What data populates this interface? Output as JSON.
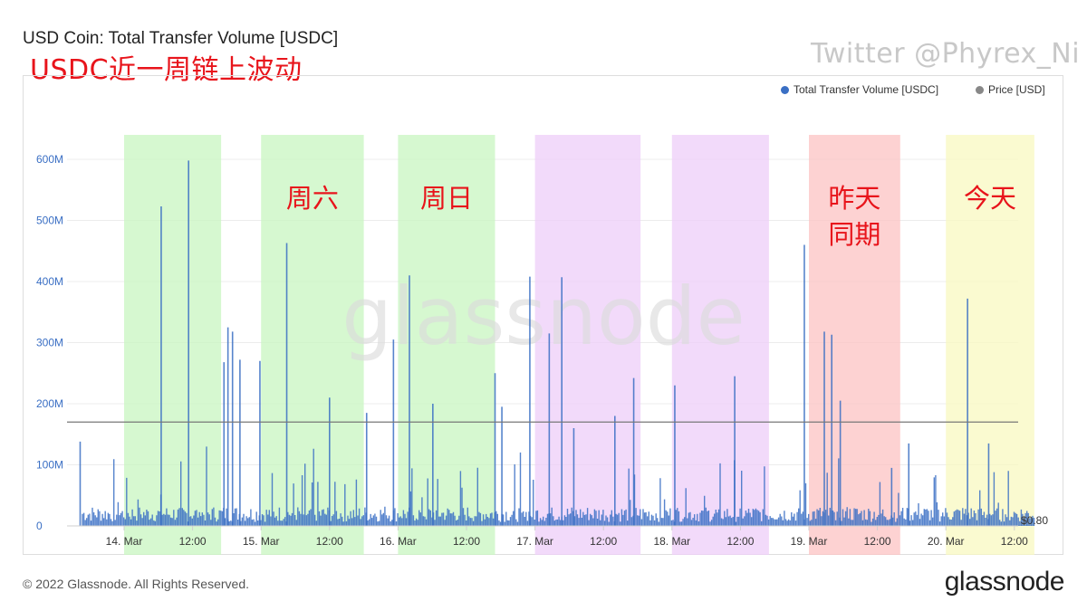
{
  "header": {
    "title": "USD Coin: Total Transfer Volume [USDC]",
    "subtitle": "USDC近一周链上波动",
    "twitter": "Twitter @Phyrex_Ni"
  },
  "legend": {
    "volume_label": "Total Transfer Volume [USDC]",
    "volume_color": "#3a6fc4",
    "price_label": "Price [USD]",
    "price_color": "#888888"
  },
  "watermark": "glassnode",
  "footer": {
    "copyright": "© 2022 Glassnode. All Rights Reserved.",
    "brand": "glassnode"
  },
  "chart_data": {
    "type": "bar",
    "title": "USD Coin: Total Transfer Volume [USDC]",
    "y_ticks": [
      "0",
      "100M",
      "200M",
      "300M",
      "400M",
      "500M",
      "600M"
    ],
    "ylim": [
      0,
      640
    ],
    "y_unit": "M USDC",
    "x_ticks": [
      "14. Mar",
      "12:00",
      "15. Mar",
      "12:00",
      "16. Mar",
      "12:00",
      "17. Mar",
      "12:00",
      "18. Mar",
      "12:00",
      "19. Mar",
      "12:00",
      "20. Mar",
      "12:00"
    ],
    "x_range_hours": [
      -9,
      163
    ],
    "price_last_label": "$0.80",
    "price_level_m": 170,
    "grid": true,
    "legend_position": "top-right",
    "bands": [
      {
        "start_h": 0,
        "end_h": 17,
        "color": "#c8f5c0",
        "label": ""
      },
      {
        "start_h": 24,
        "end_h": 42,
        "color": "#c8f5c0",
        "label": "周六"
      },
      {
        "start_h": 48,
        "end_h": 65,
        "color": "#c8f5c0",
        "label": "周日"
      },
      {
        "start_h": 72,
        "end_h": 90.5,
        "color": "#eecdf8",
        "label": ""
      },
      {
        "start_h": 96,
        "end_h": 113,
        "color": "#eecdf8",
        "label": ""
      },
      {
        "start_h": 120,
        "end_h": 136,
        "color": "#fcc3c3",
        "label": "昨天\n同期"
      },
      {
        "start_h": 144,
        "end_h": 159.5,
        "color": "#f8f8c0",
        "label": "今天"
      }
    ],
    "spikes": [
      {
        "h": -7.7,
        "v": 138
      },
      {
        "h": 6.5,
        "v": 523
      },
      {
        "h": 11.3,
        "v": 598
      },
      {
        "h": 17.5,
        "v": 268
      },
      {
        "h": 18.2,
        "v": 325
      },
      {
        "h": 19,
        "v": 318
      },
      {
        "h": 20.3,
        "v": 272
      },
      {
        "h": 23.8,
        "v": 270
      },
      {
        "h": 28.5,
        "v": 463
      },
      {
        "h": 47.2,
        "v": 305
      },
      {
        "h": 50,
        "v": 410
      },
      {
        "h": 65,
        "v": 250
      },
      {
        "h": 71.1,
        "v": 408
      },
      {
        "h": 74.5,
        "v": 315
      },
      {
        "h": 76.7,
        "v": 407
      },
      {
        "h": 89.3,
        "v": 242
      },
      {
        "h": 107,
        "v": 245
      },
      {
        "h": 119.2,
        "v": 460
      },
      {
        "h": 122.7,
        "v": 318
      },
      {
        "h": 124,
        "v": 313
      },
      {
        "h": 147.8,
        "v": 372
      },
      {
        "h": 125.5,
        "v": 205
      },
      {
        "h": 54.1,
        "v": 200
      },
      {
        "h": 96.5,
        "v": 230
      },
      {
        "h": 36,
        "v": 210
      },
      {
        "h": 42.5,
        "v": 185
      },
      {
        "h": 86,
        "v": 180
      },
      {
        "h": 137.5,
        "v": 135
      },
      {
        "h": 151.5,
        "v": 135
      },
      {
        "h": 134.5,
        "v": 95
      },
      {
        "h": 66.2,
        "v": 195
      },
      {
        "h": 78.8,
        "v": 160
      }
    ],
    "baseline": {
      "step_h": 0.25,
      "median_m": 22,
      "typical_max_m": 90
    }
  }
}
